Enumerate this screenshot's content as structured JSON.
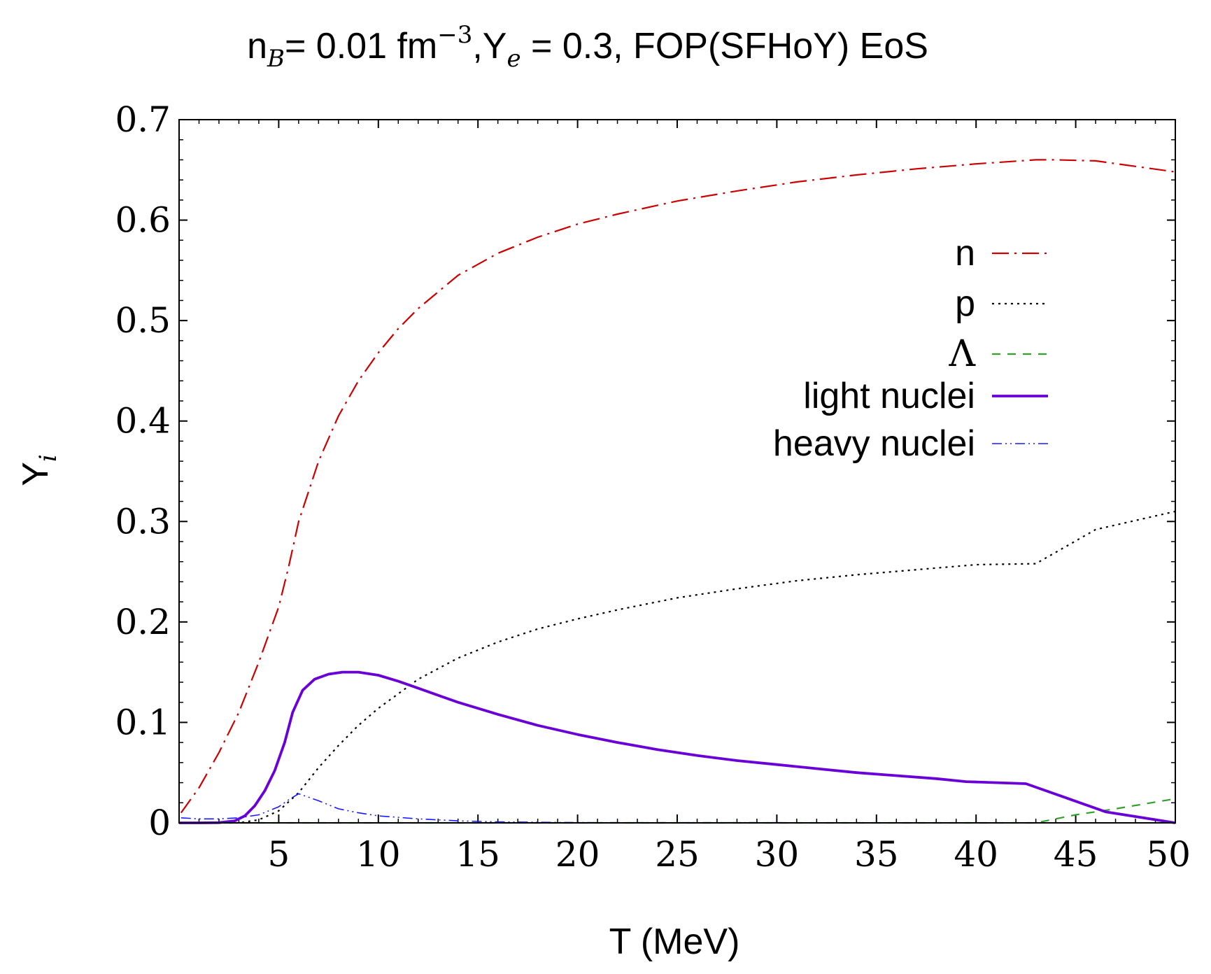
{
  "chart_data": {
    "type": "line",
    "title": {
      "n": "n",
      "b_sub": "B",
      "eq1": "= 0.01 fm",
      "exp": "−3",
      "comma_y": ",Y",
      "e_sub": "e",
      "eq2": " = 0.3, FOP(SFHoY) EoS"
    },
    "xlabel": "T (MeV)",
    "ylabel": {
      "main": "Y",
      "sub": "i"
    },
    "xlim": [
      0,
      50
    ],
    "ylim": [
      0,
      0.7
    ],
    "xticks": [
      5,
      10,
      15,
      20,
      25,
      30,
      35,
      40,
      45,
      50
    ],
    "yticks": [
      0,
      0.1,
      0.2,
      0.3,
      0.4,
      0.5,
      0.6,
      0.7
    ],
    "xtick_labels": [
      "5",
      "10",
      "15",
      "20",
      "25",
      "30",
      "35",
      "40",
      "45",
      "50"
    ],
    "ytick_labels": [
      "0",
      "0.1",
      "0.2",
      "0.3",
      "0.4",
      "0.5",
      "0.6",
      "0.7"
    ],
    "legend_position": "top-right",
    "series": [
      {
        "name": "n",
        "color": "#cc0000",
        "style": "dash-dot",
        "x": [
          0.1,
          1,
          2,
          3,
          4,
          5,
          5.5,
          6,
          7,
          8,
          9,
          10,
          11,
          12,
          14,
          16,
          18,
          20,
          22,
          25,
          28,
          31,
          34,
          37,
          40,
          43,
          44,
          46,
          50
        ],
        "y": [
          0.01,
          0.035,
          0.07,
          0.11,
          0.16,
          0.215,
          0.255,
          0.3,
          0.36,
          0.405,
          0.44,
          0.468,
          0.492,
          0.512,
          0.545,
          0.567,
          0.583,
          0.596,
          0.606,
          0.619,
          0.629,
          0.638,
          0.645,
          0.651,
          0.656,
          0.66,
          0.66,
          0.659,
          0.648
        ]
      },
      {
        "name": "p",
        "color": "#000000",
        "style": "dotted",
        "x": [
          0,
          2,
          3,
          4,
          5,
          6,
          7,
          8,
          9,
          10,
          12,
          14,
          16,
          18,
          20,
          22,
          25,
          28,
          31,
          34,
          37,
          40,
          43,
          46,
          50
        ],
        "y": [
          0,
          0,
          0,
          0.003,
          0.012,
          0.03,
          0.055,
          0.077,
          0.097,
          0.114,
          0.143,
          0.164,
          0.18,
          0.193,
          0.203,
          0.212,
          0.224,
          0.233,
          0.241,
          0.247,
          0.252,
          0.257,
          0.258,
          0.292,
          0.31
        ]
      },
      {
        "name": "Λ",
        "color": "#33a02c",
        "style": "dashed",
        "x": [
          0,
          10,
          20,
          30,
          40,
          43,
          45,
          47,
          50
        ],
        "y": [
          0,
          0,
          0,
          0,
          0,
          0,
          0.008,
          0.014,
          0.024
        ]
      },
      {
        "name": "light nuclei",
        "color": "#6a00d8",
        "style": "solid-thick",
        "x": [
          0,
          1,
          2,
          2.8,
          3.3,
          3.8,
          4.3,
          4.8,
          5.3,
          5.7,
          6.2,
          6.8,
          7.5,
          8.2,
          9,
          10,
          11,
          12,
          14,
          16,
          18,
          20,
          22,
          24,
          26,
          28,
          30,
          32,
          34,
          36,
          38,
          39.5,
          42.5,
          44.5,
          46.5,
          50
        ],
        "y": [
          0,
          0,
          0.0002,
          0.002,
          0.007,
          0.017,
          0.032,
          0.052,
          0.08,
          0.11,
          0.132,
          0.143,
          0.148,
          0.15,
          0.15,
          0.147,
          0.141,
          0.134,
          0.12,
          0.108,
          0.097,
          0.088,
          0.08,
          0.073,
          0.067,
          0.062,
          0.058,
          0.054,
          0.05,
          0.047,
          0.044,
          0.041,
          0.039,
          0.025,
          0.011,
          0
        ]
      },
      {
        "name": "heavy nuclei",
        "color": "#1a1aff",
        "style": "dash-dot-dot",
        "x": [
          0.1,
          1,
          2,
          3,
          4,
          5,
          5.5,
          6,
          7,
          8,
          9,
          10,
          12,
          14,
          16,
          20,
          50
        ],
        "y": [
          0.005,
          0.004,
          0.004,
          0.005,
          0.008,
          0.016,
          0.023,
          0.029,
          0.022,
          0.014,
          0.01,
          0.007,
          0.004,
          0.002,
          0.001,
          0.0003,
          0
        ]
      }
    ]
  }
}
